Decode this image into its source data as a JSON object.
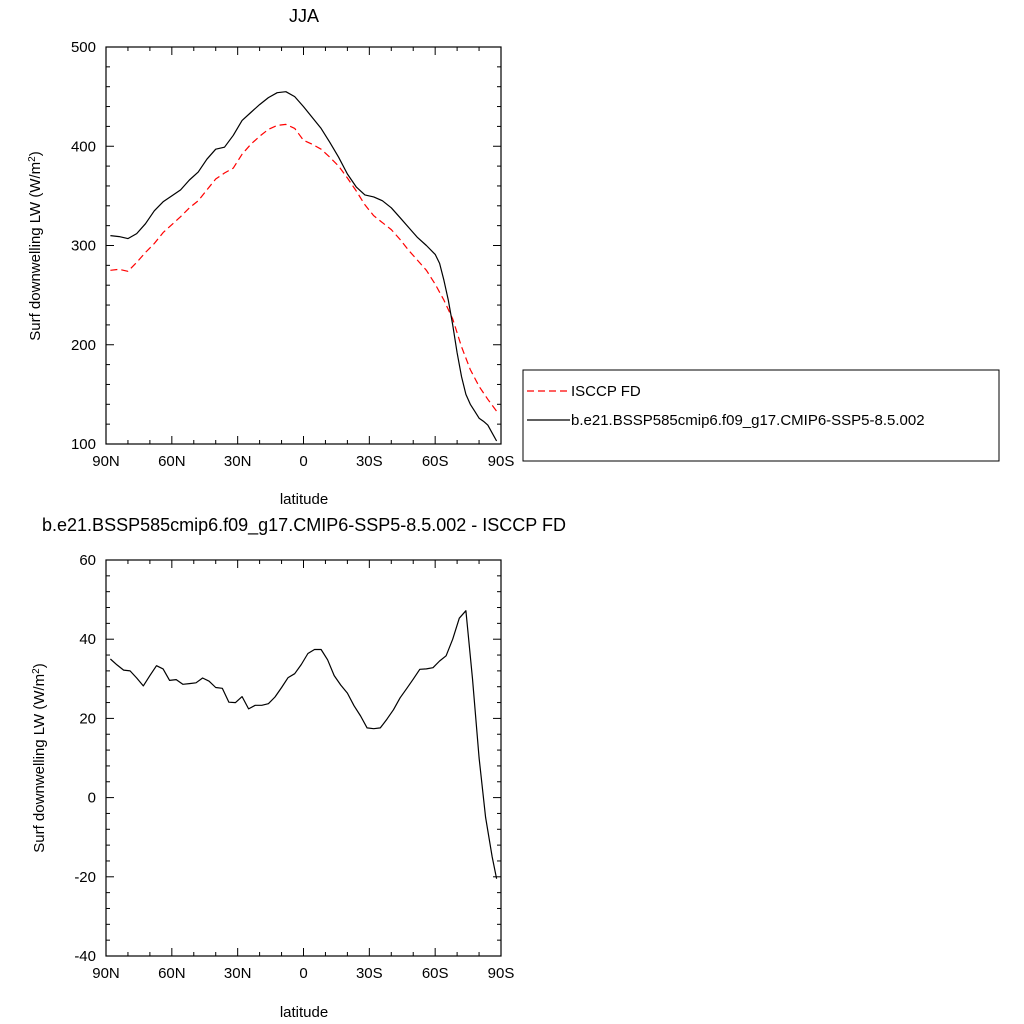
{
  "chart_data": [
    {
      "type": "line",
      "title": "JJA",
      "xlabel": "latitude",
      "ylabel_main": "Surf downwelling LW (W/m",
      "ylabel_sup": "2",
      "ylabel_end": ")",
      "xlim": [
        90,
        -90
      ],
      "ylim": [
        100,
        500
      ],
      "xticks": [
        {
          "value": 90,
          "label": "90N"
        },
        {
          "value": 60,
          "label": "60N"
        },
        {
          "value": 30,
          "label": "30N"
        },
        {
          "value": 0,
          "label": "0"
        },
        {
          "value": -30,
          "label": "30S"
        },
        {
          "value": -60,
          "label": "60S"
        },
        {
          "value": -90,
          "label": "90S"
        }
      ],
      "yticks": [
        {
          "value": 100,
          "label": "100"
        },
        {
          "value": 200,
          "label": "200"
        },
        {
          "value": 300,
          "label": "300"
        },
        {
          "value": 400,
          "label": "400"
        },
        {
          "value": 500,
          "label": "500"
        }
      ],
      "legend_position": "right",
      "series": [
        {
          "name": "ISCCP FD",
          "color": "#ff0000",
          "dash": "dashed",
          "x": [
            88,
            84,
            80,
            76,
            72,
            68,
            64,
            60,
            56,
            52,
            48,
            44,
            40,
            36,
            32,
            28,
            24,
            20,
            16,
            12,
            8,
            4,
            0,
            -4,
            -8,
            -12,
            -16,
            -20,
            -24,
            -28,
            -32,
            -36,
            -40,
            -44,
            -48,
            -52,
            -56,
            -60,
            -64,
            -68,
            -72,
            -76,
            -80,
            -84,
            -88
          ],
          "y": [
            275,
            276,
            274,
            283,
            293,
            302,
            313,
            321,
            329,
            338,
            345,
            356,
            367,
            373,
            378,
            392,
            402,
            410,
            417,
            421,
            422,
            418,
            406,
            402,
            397,
            389,
            380,
            368,
            355,
            341,
            330,
            323,
            316,
            306,
            295,
            285,
            275,
            261,
            245,
            226,
            198,
            175,
            158,
            145,
            133
          ]
        },
        {
          "name": "b.e21.BSSP585cmip6.f09_g17.CMIP6-SSP5-8.5.002",
          "color": "#000000",
          "dash": "solid",
          "x": [
            88,
            84,
            80,
            76,
            72,
            68,
            64,
            60,
            56,
            52,
            48,
            44,
            40,
            36,
            32,
            28,
            24,
            20,
            16,
            12,
            8,
            4,
            0,
            -4,
            -8,
            -12,
            -16,
            -20,
            -24,
            -28,
            -32,
            -36,
            -40,
            -44,
            -48,
            -52,
            -56,
            -60,
            -62,
            -64,
            -66,
            -68,
            -70,
            -72,
            -74,
            -76,
            -78,
            -80,
            -82,
            -84,
            -86,
            -88
          ],
          "y": [
            310,
            309,
            307,
            312,
            322,
            335,
            344,
            350,
            356,
            366,
            374,
            387,
            397,
            399,
            411,
            426,
            434,
            442,
            449,
            454,
            455,
            450,
            440,
            429,
            418,
            404,
            389,
            372,
            359,
            351,
            349,
            345,
            338,
            328,
            318,
            308,
            300,
            291,
            282,
            265,
            245,
            220,
            192,
            168,
            150,
            140,
            133,
            126,
            123,
            119,
            111,
            103
          ]
        }
      ]
    },
    {
      "type": "line",
      "title": "b.e21.BSSP585cmip6.f09_g17.CMIP6-SSP5-8.5.002 - ISCCP FD",
      "xlabel": "latitude",
      "ylabel_main": "Surf downwelling LW (W/m",
      "ylabel_sup": "2",
      "ylabel_end": ")",
      "xlim": [
        90,
        -90
      ],
      "ylim": [
        -40,
        60
      ],
      "xticks": [
        {
          "value": 90,
          "label": "90N"
        },
        {
          "value": 60,
          "label": "60N"
        },
        {
          "value": 30,
          "label": "30N"
        },
        {
          "value": 0,
          "label": "0"
        },
        {
          "value": -30,
          "label": "30S"
        },
        {
          "value": -60,
          "label": "60S"
        },
        {
          "value": -90,
          "label": "90S"
        }
      ],
      "yticks": [
        {
          "value": -40,
          "label": "-40"
        },
        {
          "value": -20,
          "label": "-20"
        },
        {
          "value": 0,
          "label": "0"
        },
        {
          "value": 20,
          "label": "20"
        },
        {
          "value": 40,
          "label": "40"
        },
        {
          "value": 60,
          "label": "60"
        }
      ],
      "series": [
        {
          "color": "#000000",
          "dash": "solid",
          "x": [
            88,
            85,
            82,
            79,
            76,
            73,
            70,
            67,
            64,
            61,
            58,
            55,
            52,
            49,
            46,
            43,
            40,
            37,
            34,
            31,
            28,
            25,
            22,
            19,
            16,
            13,
            10,
            7,
            4,
            1,
            -2,
            -5,
            -8,
            -11,
            -14,
            -17,
            -20,
            -23,
            -26,
            -29,
            -32,
            -35,
            -38,
            -41,
            -44,
            -47,
            -50,
            -53,
            -56,
            -59,
            -62,
            -65,
            -68,
            -71,
            -74,
            -77,
            -80,
            -83,
            -86,
            -88
          ],
          "y": [
            35,
            33.5,
            32.2,
            32,
            30.2,
            28.2,
            30.8,
            33.3,
            32.5,
            29.6,
            29.8,
            28.6,
            28.8,
            29,
            30.2,
            29.4,
            27.8,
            27.6,
            24.1,
            24,
            25.5,
            22.4,
            23.3,
            23.3,
            23.7,
            25.4,
            27.8,
            30.3,
            31.3,
            33.6,
            36.4,
            37.4,
            37.4,
            34.8,
            30.8,
            28.4,
            26.4,
            23.2,
            20.6,
            17.6,
            17.4,
            17.6,
            19.8,
            22.2,
            25.2,
            27.5,
            29.9,
            32.4,
            32.5,
            32.8,
            34.5,
            35.8,
            40,
            45.3,
            47.2,
            30,
            10,
            -5,
            -15,
            -20.5
          ]
        }
      ]
    }
  ]
}
